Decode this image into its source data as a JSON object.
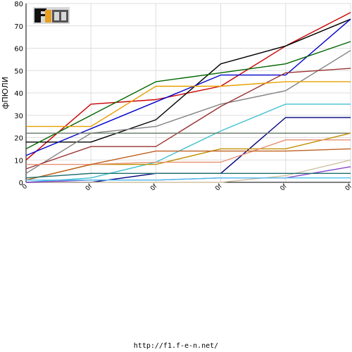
{
  "logo": {
    "text": "F1EN",
    "colors": {
      "f": "#111111",
      "one": "#e8a020",
      "en": "#555555"
    }
  },
  "footer": {
    "url": "http://f1.f-e-n.net/"
  },
  "chart_data": {
    "type": "line",
    "ylabel": "фПЮЛИ",
    "xlabel": "",
    "ylim": [
      0,
      80
    ],
    "yticks": [
      0,
      10,
      20,
      30,
      40,
      50,
      60,
      70,
      80
    ],
    "x_tick_labels": [
      "0",
      "0f",
      "0f",
      "0f",
      "0f",
      "0f"
    ],
    "grid": true,
    "legend": "none",
    "series": [
      {
        "color": "#cc0000",
        "values": [
          10,
          35,
          37,
          43,
          61,
          76
        ]
      },
      {
        "color": "#000000",
        "values": [
          18,
          18,
          28,
          53,
          61,
          73
        ]
      },
      {
        "color": "#0000cc",
        "values": [
          12,
          24,
          36,
          48,
          48,
          73
        ]
      },
      {
        "color": "#006600",
        "values": [
          15,
          30,
          45,
          49,
          53,
          63
        ]
      },
      {
        "color": "#808080",
        "values": [
          4,
          22,
          25,
          35,
          41,
          59
        ]
      },
      {
        "color": "#993333",
        "values": [
          6,
          16,
          16,
          34,
          49,
          51
        ]
      },
      {
        "color": "#e8a000",
        "values": [
          25,
          25,
          43,
          43,
          45,
          45
        ]
      },
      {
        "color": "#40c0d0",
        "values": [
          0,
          2,
          9,
          23,
          35,
          35
        ]
      },
      {
        "color": "#000080",
        "values": [
          0,
          0,
          4,
          4,
          29,
          29
        ]
      },
      {
        "color": "#667766",
        "values": [
          22,
          22,
          22,
          22,
          22,
          22
        ]
      },
      {
        "color": "#c09000",
        "values": [
          1,
          8,
          8,
          15,
          15,
          22
        ]
      },
      {
        "color": "#e89070",
        "values": [
          8,
          8,
          9,
          9,
          19,
          19
        ]
      },
      {
        "color": "#c06020",
        "values": [
          1,
          8,
          14,
          14,
          14,
          15
        ]
      },
      {
        "color": "#d0c0a0",
        "values": [
          0,
          0,
          0,
          0,
          3,
          10
        ]
      },
      {
        "color": "#8844cc",
        "values": [
          0,
          1,
          1,
          2,
          2,
          7
        ]
      },
      {
        "color": "#207070",
        "values": [
          2,
          4,
          4,
          4,
          4,
          4
        ]
      },
      {
        "color": "#50c0f0",
        "values": [
          1,
          1,
          1,
          2,
          2,
          2
        ]
      }
    ]
  }
}
